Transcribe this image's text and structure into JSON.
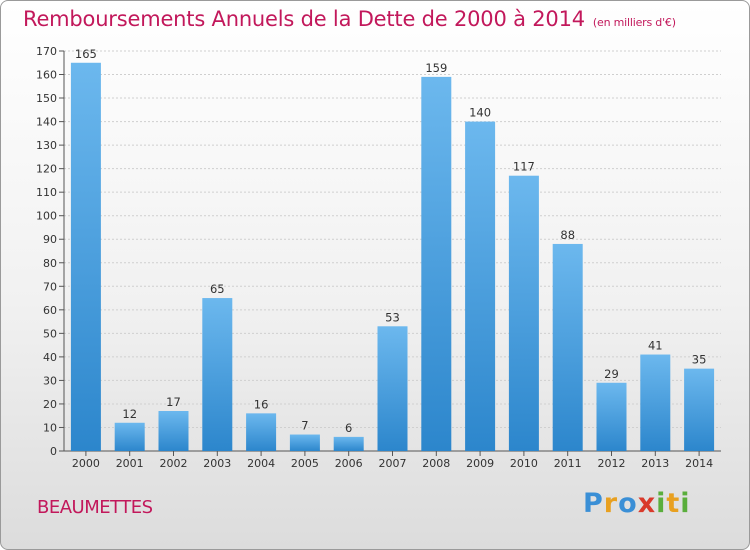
{
  "title": "Remboursements Annuels de la Dette de 2000 à 2014",
  "unit_label": "(en milliers d'€)",
  "commune": "BEAUMETTES",
  "logo": {
    "letters": [
      "P",
      "r",
      "o",
      "x",
      "i",
      "t",
      "i"
    ],
    "colors": [
      "#3a8fd6",
      "#e8a020",
      "#3a8fd6",
      "#d93a2b",
      "#5aae3c",
      "#e8a020",
      "#5aae3c"
    ]
  },
  "colors": {
    "bar_light": "#6cb8ee",
    "bar_dark": "#2c86cc",
    "title": "#c2185b"
  },
  "chart_data": {
    "type": "bar",
    "categories": [
      "2000",
      "2001",
      "2002",
      "2003",
      "2004",
      "2005",
      "2006",
      "2007",
      "2008",
      "2009",
      "2010",
      "2011",
      "2012",
      "2013",
      "2014"
    ],
    "values": [
      165,
      12,
      17,
      65,
      16,
      7,
      6,
      53,
      159,
      140,
      117,
      88,
      29,
      41,
      35
    ],
    "ylim": [
      0,
      170
    ],
    "yticks": [
      0,
      10,
      20,
      30,
      40,
      50,
      60,
      70,
      80,
      90,
      100,
      110,
      120,
      130,
      140,
      150,
      160,
      170
    ],
    "grid": true
  }
}
